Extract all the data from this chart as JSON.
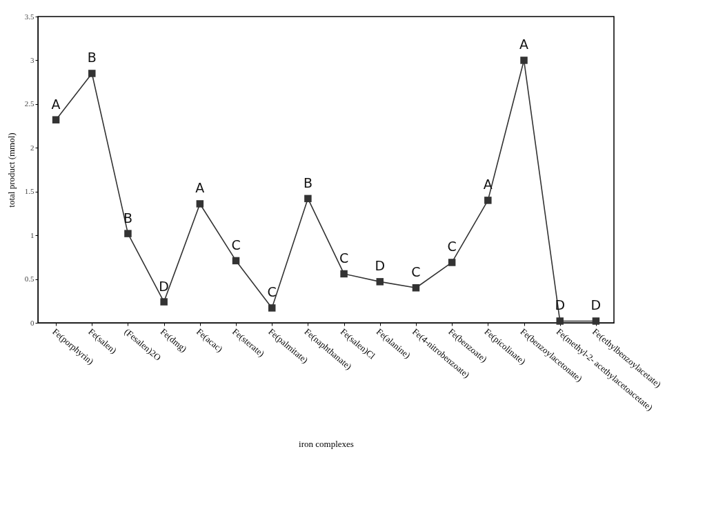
{
  "chart_data": {
    "type": "line",
    "xlabel": "iron complexes",
    "ylabel": "total product (mmol)",
    "categories": [
      "Fe(porphyrin)",
      "Fe(salen)",
      "(Fesalen)2O",
      "Fe(dmg)",
      "Fe(acac)",
      "Fe(sterate)",
      "Fe(palmitate)",
      "Fe(naphthanate)",
      "Fe(salen)Cl",
      "Fe(alanine)",
      "Fe(4-nitrobenzoate)",
      "Fe(benzoate)",
      "Fe(picolinate)",
      "Fe(benzoylacetonate)",
      "Fe(methyl-2- acethylacetoacetate)",
      "Fe(ethylbenzoylacetate)"
    ],
    "series": [
      {
        "color": "#333333",
        "values": [
          2.32,
          2.85,
          1.02,
          0.24,
          1.36,
          0.71,
          0.17,
          1.42,
          0.56,
          0.47,
          0.4,
          0.69,
          1.4,
          3.0,
          0.02,
          0.02
        ]
      }
    ],
    "ylim": [
      0,
      3.5
    ],
    "yticks": [
      0,
      0.5,
      1,
      1.5,
      2,
      2.5,
      3,
      3.5
    ],
    "grid": false,
    "marker": "square",
    "line_style": "solid",
    "annotations": [
      {
        "text": "A",
        "x": "Fe(porphyrin)",
        "y": 2.32
      },
      {
        "text": "B",
        "x": "Fe(salen)",
        "y": 2.85
      },
      {
        "text": "B",
        "x": "(Fesalen)2O",
        "y": 1.02
      },
      {
        "text": "D",
        "x": "Fe(dmg)",
        "y": 0.24
      },
      {
        "text": "A",
        "x": "Fe(acac)",
        "y": 1.36
      },
      {
        "text": "C",
        "x": "Fe(sterate)",
        "y": 0.71
      },
      {
        "text": "C",
        "x": "Fe(palmitate)",
        "y": 0.17
      },
      {
        "text": "B",
        "x": "Fe(naphthanate)",
        "y": 1.42
      },
      {
        "text": "C",
        "x": "Fe(salen)Cl",
        "y": 0.56
      },
      {
        "text": "D",
        "x": "Fe(alanine)",
        "y": 0.47
      },
      {
        "text": "C",
        "x": "Fe(4-nitrobenzoate)",
        "y": 0.4
      },
      {
        "text": "C",
        "x": "Fe(benzoate)",
        "y": 0.69
      },
      {
        "text": "A",
        "x": "Fe(picolinate)",
        "y": 1.4
      },
      {
        "text": "A",
        "x": "Fe(benzoylacetonate)",
        "y": 3.0
      },
      {
        "text": "D",
        "x": "Fe(methyl-2- acethylacetoacetate)",
        "y": 0.02
      },
      {
        "text": "D",
        "x": "Fe(ethylbenzoylacetate)",
        "y": 0.02
      }
    ]
  }
}
